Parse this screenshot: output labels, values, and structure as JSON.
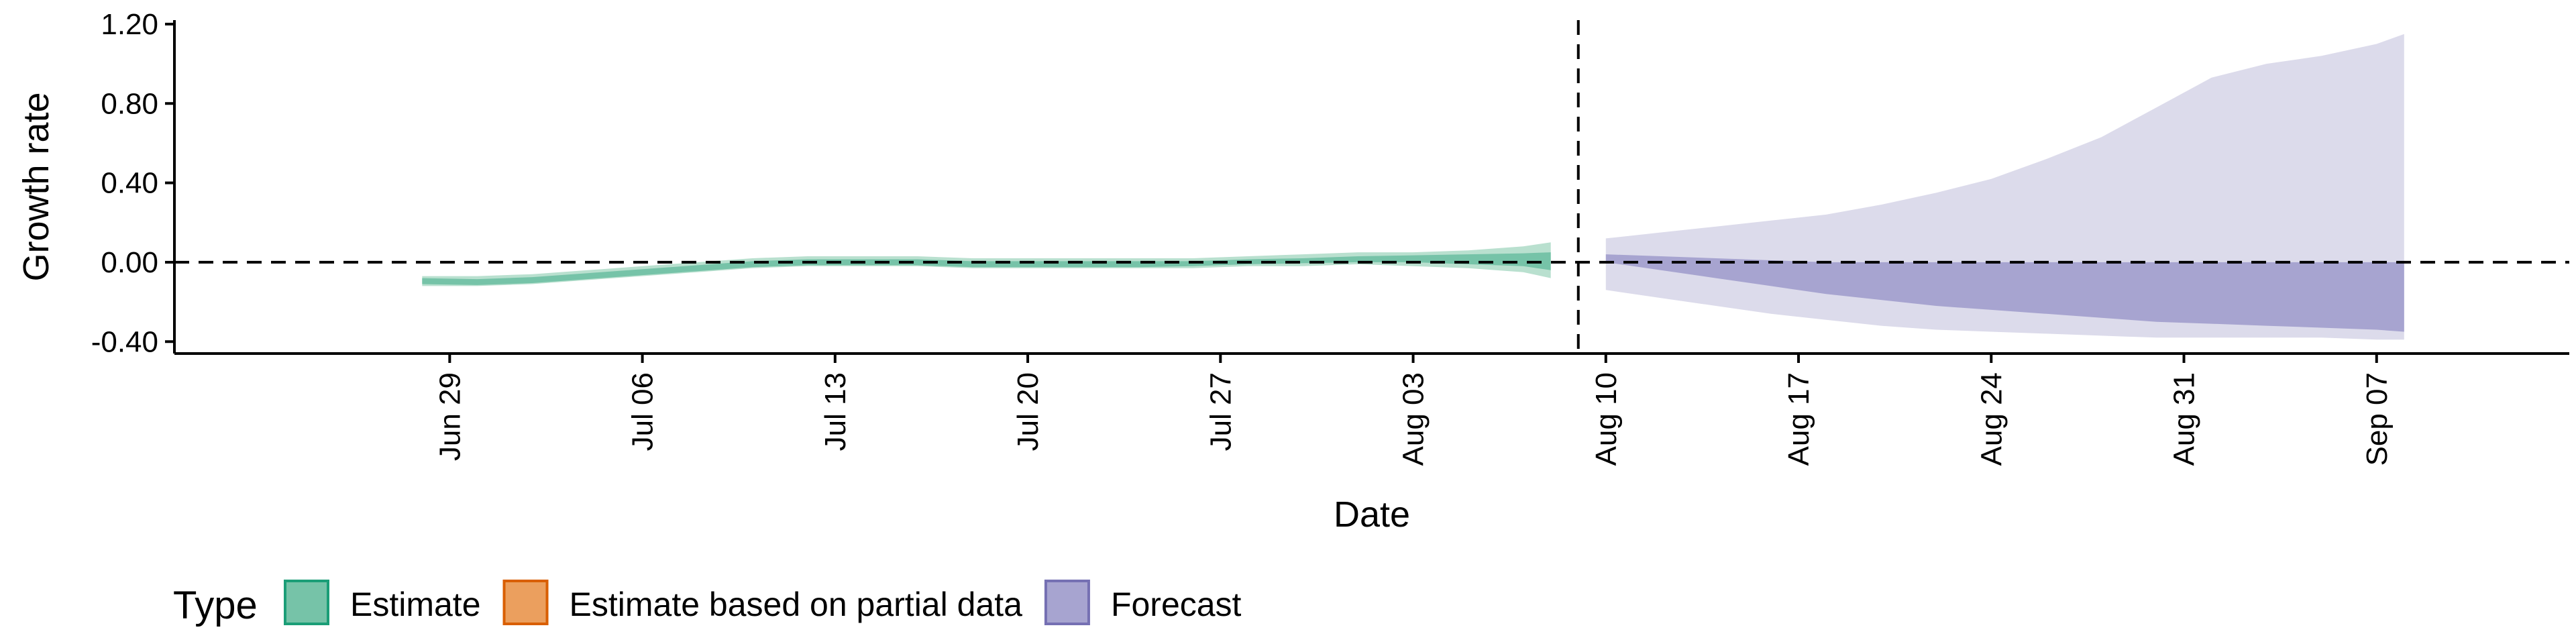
{
  "chart_data": {
    "type": "area",
    "xlabel": "Date",
    "ylabel": "Growth rate",
    "ylim": [
      -0.46,
      1.22
    ],
    "y_ticks": [
      -0.4,
      0.0,
      0.4,
      0.8,
      1.2
    ],
    "y_tick_labels": [
      "-0.40",
      "0.00",
      "0.40",
      "0.80",
      "1.20"
    ],
    "x_range": [
      "2021-06-19",
      "2021-09-14"
    ],
    "x_ticks": [
      "2021-06-29",
      "2021-07-06",
      "2021-07-13",
      "2021-07-20",
      "2021-07-27",
      "2021-08-03",
      "2021-08-10",
      "2021-08-17",
      "2021-08-24",
      "2021-08-31",
      "2021-09-07"
    ],
    "x_tick_labels": [
      "Jun 29",
      "Jul 06",
      "Jul 13",
      "Jul 20",
      "Jul 27",
      "Aug 03",
      "Aug 10",
      "Aug 17",
      "Aug 24",
      "Aug 31",
      "Sep 07"
    ],
    "reference_lines": {
      "horizontal_y": 0.0,
      "vertical_x": "2021-08-09"
    },
    "legend": {
      "title": "Type",
      "position": "bottom",
      "items": [
        {
          "label": "Estimate",
          "fill": "#76c3a8",
          "stroke": "#1b9e77"
        },
        {
          "label": "Estimate based on partial data",
          "fill": "#eb9f5e",
          "stroke": "#d95f02"
        },
        {
          "label": "Forecast",
          "fill": "#a7a4d0",
          "stroke": "#7570b3"
        }
      ]
    },
    "series": [
      {
        "name": "Estimate",
        "color_outer": "#b9e0cf",
        "color_inner": "#76c3a8",
        "x": [
          "2021-06-28",
          "2021-06-30",
          "2021-07-02",
          "2021-07-04",
          "2021-07-06",
          "2021-07-08",
          "2021-07-10",
          "2021-07-12",
          "2021-07-14",
          "2021-07-16",
          "2021-07-18",
          "2021-07-20",
          "2021-07-22",
          "2021-07-24",
          "2021-07-26",
          "2021-07-28",
          "2021-07-30",
          "2021-08-01",
          "2021-08-03",
          "2021-08-05",
          "2021-08-07",
          "2021-08-08"
        ],
        "outer_upper": [
          -0.07,
          -0.07,
          -0.06,
          -0.04,
          -0.02,
          0.0,
          0.02,
          0.03,
          0.03,
          0.03,
          0.02,
          0.02,
          0.02,
          0.02,
          0.02,
          0.03,
          0.04,
          0.05,
          0.05,
          0.06,
          0.08,
          0.1
        ],
        "outer_lower": [
          -0.12,
          -0.12,
          -0.11,
          -0.09,
          -0.07,
          -0.05,
          -0.03,
          -0.02,
          -0.02,
          -0.02,
          -0.03,
          -0.03,
          -0.03,
          -0.03,
          -0.03,
          -0.02,
          -0.02,
          -0.01,
          -0.02,
          -0.03,
          -0.05,
          -0.08
        ],
        "inner_upper": [
          -0.08,
          -0.085,
          -0.075,
          -0.055,
          -0.035,
          -0.015,
          0.005,
          0.015,
          0.015,
          0.015,
          0.005,
          0.005,
          0.005,
          0.005,
          0.005,
          0.015,
          0.02,
          0.03,
          0.035,
          0.04,
          0.045,
          0.05
        ],
        "inner_lower": [
          -0.11,
          -0.115,
          -0.105,
          -0.085,
          -0.065,
          -0.045,
          -0.025,
          -0.015,
          -0.015,
          -0.015,
          -0.025,
          -0.025,
          -0.025,
          -0.025,
          -0.02,
          -0.01,
          -0.005,
          0.0,
          0.0,
          -0.01,
          -0.02,
          -0.04
        ]
      },
      {
        "name": "Forecast",
        "color_outer": "#dcdbeb",
        "color_inner": "#a7a4d0",
        "x": [
          "2021-08-10",
          "2021-08-12",
          "2021-08-14",
          "2021-08-16",
          "2021-08-18",
          "2021-08-20",
          "2021-08-22",
          "2021-08-24",
          "2021-08-26",
          "2021-08-28",
          "2021-08-30",
          "2021-09-01",
          "2021-09-03",
          "2021-09-05",
          "2021-09-07",
          "2021-09-08"
        ],
        "outer_upper": [
          0.12,
          0.15,
          0.18,
          0.21,
          0.24,
          0.29,
          0.35,
          0.42,
          0.52,
          0.63,
          0.78,
          0.93,
          1.0,
          1.04,
          1.1,
          1.15
        ],
        "outer_lower": [
          -0.14,
          -0.18,
          -0.22,
          -0.26,
          -0.29,
          -0.32,
          -0.34,
          -0.35,
          -0.36,
          -0.37,
          -0.38,
          -0.38,
          -0.38,
          -0.38,
          -0.39,
          -0.39
        ],
        "inner_upper": [
          0.04,
          0.03,
          0.02,
          0.01,
          0.0,
          0.0,
          0.0,
          0.0,
          0.0,
          0.0,
          0.0,
          0.0,
          0.0,
          0.0,
          0.0,
          0.0
        ],
        "inner_lower": [
          0.0,
          -0.04,
          -0.08,
          -0.12,
          -0.16,
          -0.19,
          -0.22,
          -0.24,
          -0.26,
          -0.28,
          -0.3,
          -0.31,
          -0.32,
          -0.33,
          -0.34,
          -0.35
        ]
      }
    ]
  }
}
